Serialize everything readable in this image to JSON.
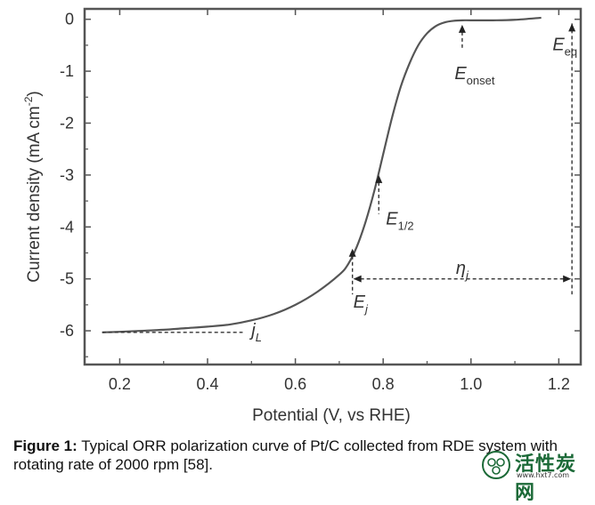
{
  "chart_data": {
    "type": "line",
    "title": "",
    "xlabel": "Potential (V, vs RHE)",
    "ylabel_main": "Current density (mA cm",
    "ylabel_sup": "-2",
    "ylabel_end": ")",
    "xlim": [
      0.12,
      1.25
    ],
    "ylim": [
      -6.65,
      0.2
    ],
    "x_ticks": [
      0.2,
      0.4,
      0.6,
      0.8,
      1.0,
      1.2
    ],
    "x_tick_labels": [
      "0.2",
      "0.4",
      "0.6",
      "0.8",
      "1.0",
      "1.2"
    ],
    "y_ticks": [
      0,
      -1,
      -2,
      -3,
      -4,
      -5,
      -6
    ],
    "y_tick_labels": [
      "0",
      "-1",
      "-2",
      "-3",
      "-4",
      "-5",
      "-6"
    ],
    "series": [
      {
        "name": "Pt/C ORR polarization curve",
        "x": [
          0.16,
          0.2,
          0.25,
          0.3,
          0.35,
          0.4,
          0.45,
          0.5,
          0.55,
          0.6,
          0.65,
          0.7,
          0.72,
          0.74,
          0.76,
          0.78,
          0.8,
          0.82,
          0.84,
          0.86,
          0.88,
          0.9,
          0.92,
          0.94,
          0.96,
          0.98,
          1.0,
          1.05,
          1.1,
          1.16
        ],
        "y": [
          -6.03,
          -6.02,
          -6.0,
          -5.98,
          -5.95,
          -5.92,
          -5.88,
          -5.8,
          -5.68,
          -5.5,
          -5.25,
          -4.92,
          -4.72,
          -4.38,
          -3.9,
          -3.3,
          -2.6,
          -1.9,
          -1.3,
          -0.85,
          -0.5,
          -0.27,
          -0.13,
          -0.06,
          -0.03,
          -0.02,
          -0.02,
          -0.02,
          -0.01,
          0.03
        ]
      }
    ],
    "annotations": [
      {
        "main": "E",
        "sub": "onset",
        "x": 0.98,
        "y": -1.15
      },
      {
        "main": "E",
        "sub": "eq",
        "x": 1.23,
        "y": -0.6
      },
      {
        "main": "E",
        "sub": "1/2",
        "x": 0.79,
        "y": -3.95
      },
      {
        "main": "E",
        "sub": "j",
        "x": 0.73,
        "y": -5.55
      },
      {
        "main": "j",
        "sub": "L",
        "x": 0.5,
        "y": -6.1
      },
      {
        "main": "η",
        "sub": "j",
        "x": 0.98,
        "y": -4.9
      }
    ],
    "markers": {
      "onset_x": 0.98,
      "onset_y": -0.02,
      "eq_x": 1.23,
      "half_x": 0.79,
      "half_y": -3.0,
      "ej_x": 0.73,
      "ej_y": -4.42,
      "eta_y": -5.0,
      "jl_y": -6.03
    }
  },
  "caption": {
    "label": "Figure 1:",
    "text": " Typical ORR polarization curve of Pt/C collected from RDE system with rotating rate of 2000 rpm [58]."
  },
  "watermark": {
    "text": "活性炭网",
    "url": "www.hxt7.com"
  }
}
